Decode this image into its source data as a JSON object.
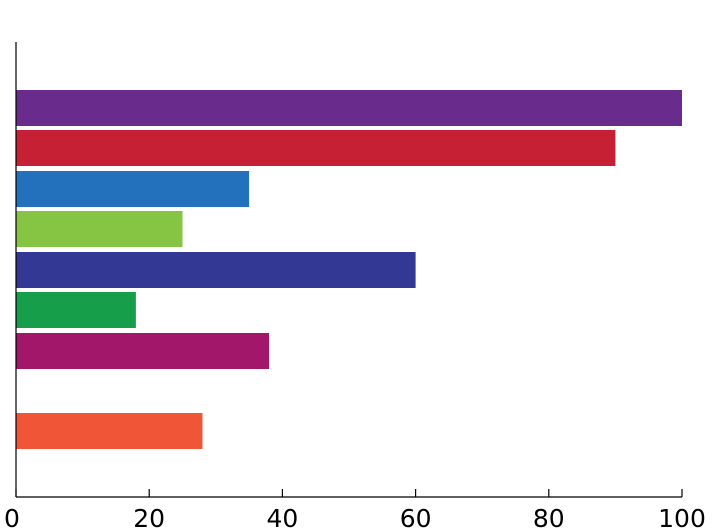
{
  "chart_data": {
    "type": "bar",
    "orientation": "horizontal",
    "title": "",
    "xlabel": "",
    "ylabel": "",
    "xlim": [
      0,
      100
    ],
    "x_ticks": [
      0,
      20,
      40,
      60,
      80,
      100
    ],
    "grid": false,
    "legend": "none",
    "values": [
      100,
      90,
      35,
      25,
      60,
      18,
      38,
      28
    ],
    "colors": [
      "#6a2c8c",
      "#c52033",
      "#2370bd",
      "#86c544",
      "#323894",
      "#169e4b",
      "#a2176a",
      "#f05537"
    ],
    "axis_color": "#000000"
  }
}
